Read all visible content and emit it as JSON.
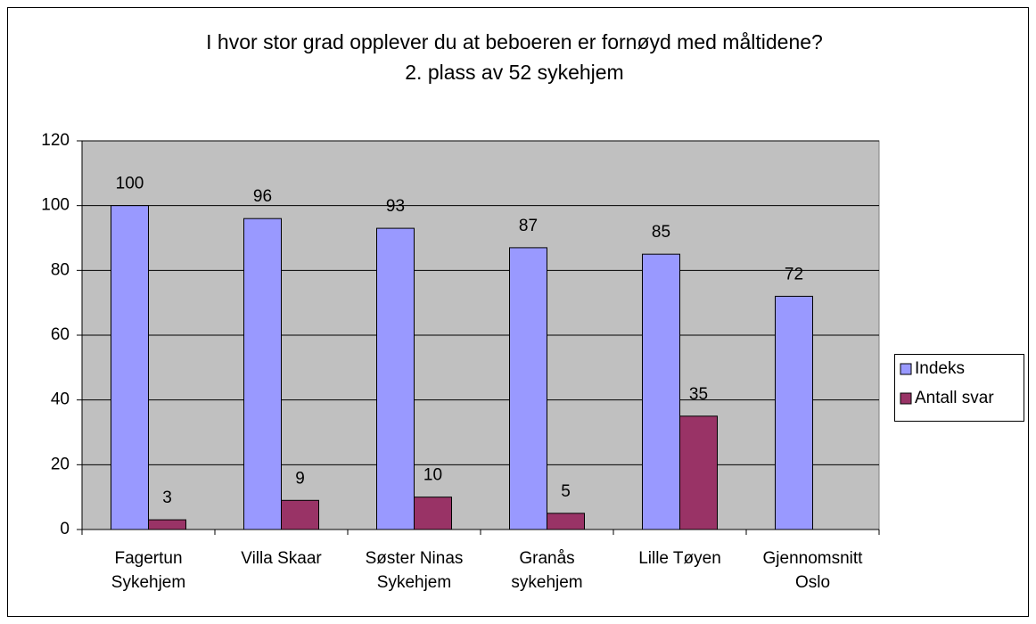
{
  "chart_data": {
    "type": "bar",
    "title": "I hvor stor grad opplever du at beboeren er fornøyd med måltidene?",
    "subtitle": "2. plass av 52 sykehjem",
    "categories": [
      "Fagertun\nSykehjem",
      "Villa Skaar",
      "Søster Ninas\nSykehjem",
      "Granås\nsykehjem",
      "Lille Tøyen",
      "Gjennomsnitt\nOslo"
    ],
    "series": [
      {
        "name": "Indeks",
        "color": "#9999ff",
        "values": [
          100,
          96,
          93,
          87,
          85,
          72
        ]
      },
      {
        "name": "Antall svar",
        "color": "#993366",
        "values": [
          3,
          9,
          10,
          5,
          35,
          null
        ]
      }
    ],
    "ylim": [
      0,
      120
    ],
    "yticks": [
      0,
      20,
      40,
      60,
      80,
      100,
      120
    ],
    "grid": true,
    "legend": "right",
    "plot_background": "#c0c0c0"
  }
}
